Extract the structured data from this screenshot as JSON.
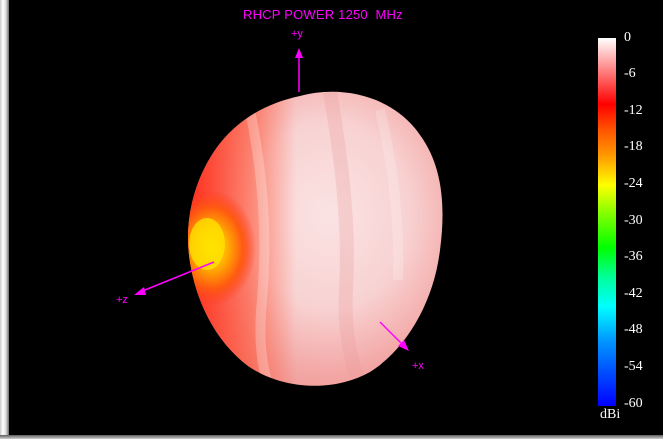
{
  "plot": {
    "title": "RHCP POWER 1250  MHz",
    "axes": {
      "y_label": "+y",
      "z_label": "+z",
      "x_label": "+x",
      "color": "#ff00ff"
    }
  },
  "colorbar": {
    "ticks": [
      "0",
      "-6",
      "-12",
      "-18",
      "-24",
      "-30",
      "-36",
      "-42",
      "-48",
      "-54",
      "-60"
    ],
    "unit": "dBi",
    "range": [
      -60,
      0
    ]
  }
}
